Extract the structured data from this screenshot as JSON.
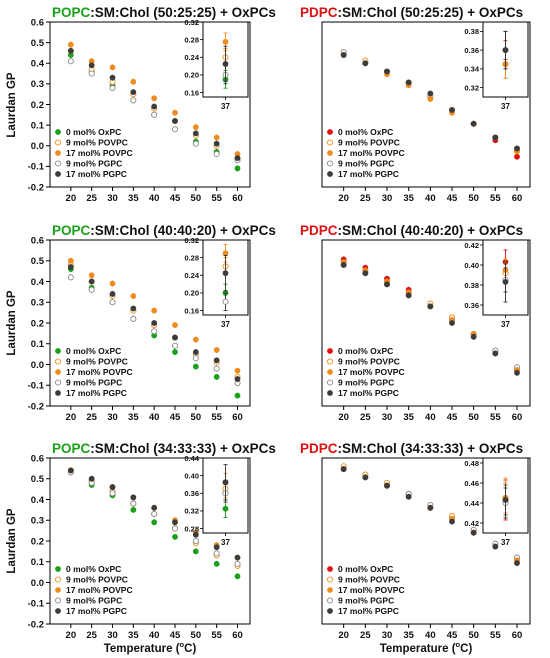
{
  "figure": {
    "ylabel": "Laurdan GP",
    "xlabel_main": "Temperature (",
    "xlabel_deg": "o",
    "xlabel_tail": "C)",
    "colors": {
      "green": "#1aa01a",
      "red": "#dd1111",
      "orange": "#f08c1e",
      "gray": "#3c3c3c",
      "dark": "#111111"
    }
  },
  "chart_data": [
    {
      "type": "scatter",
      "title_lipid": "POPC",
      "title_rest": ":SM:Chol (50:25:25) + OxPCs",
      "lipid_color": "#1aa01a",
      "x": [
        20,
        25,
        30,
        35,
        40,
        45,
        50,
        55,
        60
      ],
      "xlim": [
        15,
        63
      ],
      "ylim": [
        -0.2,
        0.6
      ],
      "xticks": [
        "20",
        "25",
        "30",
        "35",
        "40",
        "45",
        "50",
        "55",
        "60"
      ],
      "yticks": [
        "-0.2",
        "-0.1",
        "0.0",
        "0.1",
        "0.2",
        "0.3",
        "0.4",
        "0.5",
        "0.6"
      ],
      "legend_labels": [
        "0 mol% OxPC",
        "9 mol% POVPC",
        "17 mol% POVPC",
        "9 mol% PGPC",
        "17 mol% PGPC"
      ],
      "series": [
        {
          "name": "0 mol% OxPC",
          "style": "green",
          "values": [
            0.44,
            0.36,
            0.29,
            0.22,
            0.15,
            0.08,
            0.02,
            -0.03,
            -0.11
          ]
        },
        {
          "name": "9 mol% POVPC",
          "style": "orange-open",
          "values": [
            0.46,
            0.37,
            0.31,
            0.25,
            0.18,
            0.12,
            0.05,
            0.0,
            -0.06
          ]
        },
        {
          "name": "17 mol% POVPC",
          "style": "orange",
          "values": [
            0.49,
            0.41,
            0.38,
            0.31,
            0.23,
            0.16,
            0.09,
            0.04,
            -0.04
          ]
        },
        {
          "name": "9 mol% PGPC",
          "style": "gray-open",
          "values": [
            0.41,
            0.35,
            0.28,
            0.22,
            0.15,
            0.08,
            0.01,
            -0.04,
            -0.07
          ]
        },
        {
          "name": "17 mol% PGPC",
          "style": "dark",
          "values": [
            0.46,
            0.39,
            0.33,
            0.26,
            0.19,
            0.12,
            0.06,
            0.01,
            -0.06
          ]
        }
      ],
      "inset": {
        "xtick": "37",
        "ylim": [
          0.15,
          0.32
        ],
        "yticks": [
          "0.16",
          "0.20",
          "0.24",
          "0.28",
          "0.32"
        ],
        "points": [
          {
            "style": "green",
            "value": 0.19,
            "err": 0.02
          },
          {
            "style": "orange-open",
            "value": 0.24,
            "err": 0.02
          },
          {
            "style": "orange",
            "value": 0.275,
            "err": 0.02
          },
          {
            "style": "gray-open",
            "value": 0.2,
            "err": 0.02
          },
          {
            "style": "dark",
            "value": 0.225,
            "err": 0.04
          }
        ]
      }
    },
    {
      "type": "scatter",
      "title_lipid": "PDPC",
      "title_rest": ":SM:Chol (50:25:25) + OxPCs",
      "lipid_color": "#dd1111",
      "x": [
        20,
        25,
        30,
        35,
        40,
        45,
        50,
        55,
        60
      ],
      "xlim": [
        15,
        63
      ],
      "ylim": [
        0.0,
        0.6
      ],
      "xticks": [
        "20",
        "25",
        "30",
        "35",
        "40",
        "45",
        "50",
        "55",
        "60"
      ],
      "yticks": [],
      "legend_labels": [
        "0 mol% OxPC",
        "9 mol% POVPC",
        "17 mol% POVPC",
        "9 mol% PGPC",
        "17 mol% PGPC"
      ],
      "series": [
        {
          "name": "0 mol% OxPC",
          "style": "red",
          "values": [
            0.48,
            0.45,
            0.42,
            0.38,
            0.33,
            0.28,
            0.23,
            0.17,
            0.11
          ]
        },
        {
          "name": "9 mol% POVPC",
          "style": "orange-open",
          "values": [
            0.49,
            0.46,
            0.42,
            0.38,
            0.33,
            0.28,
            0.23,
            0.18,
            0.13
          ]
        },
        {
          "name": "17 mol% POVPC",
          "style": "orange",
          "values": [
            0.48,
            0.45,
            0.41,
            0.37,
            0.32,
            0.27,
            0.23,
            0.18,
            0.13
          ]
        },
        {
          "name": "9 mol% PGPC",
          "style": "gray-open",
          "values": [
            0.49,
            0.45,
            0.42,
            0.38,
            0.33,
            0.28,
            0.23,
            0.18,
            0.14
          ]
        },
        {
          "name": "17 mol% PGPC",
          "style": "dark",
          "values": [
            0.48,
            0.45,
            0.42,
            0.38,
            0.34,
            0.28,
            0.23,
            0.18,
            0.14
          ]
        }
      ],
      "inset": {
        "xtick": "37",
        "ylim": [
          0.31,
          0.39
        ],
        "yticks": [
          "0.32",
          "0.34",
          "0.36",
          "0.38"
        ],
        "points": [
          {
            "style": "red",
            "value": 0.36,
            "err": 0.01
          },
          {
            "style": "orange-open",
            "value": 0.345,
            "err": 0.015
          },
          {
            "style": "orange",
            "value": 0.345,
            "err": 0.015
          },
          {
            "style": "gray-open",
            "value": 0.36,
            "err": 0.02
          },
          {
            "style": "dark",
            "value": 0.36,
            "err": 0.02
          }
        ]
      }
    },
    {
      "type": "scatter",
      "title_lipid": "POPC",
      "title_rest": ":SM:Chol (40:40:20) + OxPCs",
      "lipid_color": "#1aa01a",
      "x": [
        20,
        25,
        30,
        35,
        40,
        45,
        50,
        55,
        60
      ],
      "xlim": [
        15,
        63
      ],
      "ylim": [
        -0.2,
        0.6
      ],
      "xticks": [
        "20",
        "25",
        "30",
        "35",
        "40",
        "45",
        "50",
        "55",
        "60"
      ],
      "yticks": [
        "-0.2",
        "-0.1",
        "0.0",
        "0.1",
        "0.2",
        "0.3",
        "0.4",
        "0.5",
        "0.6"
      ],
      "legend_labels": [
        "0 mol% OxPC",
        "9 mol% POVPC",
        "17 mol% POVPC",
        "9 mol% PGPC",
        "17 mol% PGPC"
      ],
      "series": [
        {
          "name": "0 mol% OxPC",
          "style": "green",
          "values": [
            0.46,
            0.37,
            0.3,
            0.22,
            0.14,
            0.06,
            -0.01,
            -0.06,
            -0.15
          ]
        },
        {
          "name": "9 mol% POVPC",
          "style": "orange-open",
          "values": [
            0.48,
            0.4,
            0.33,
            0.26,
            0.19,
            0.13,
            0.05,
            0.01,
            -0.06
          ]
        },
        {
          "name": "17 mol% POVPC",
          "style": "orange",
          "values": [
            0.5,
            0.43,
            0.39,
            0.33,
            0.26,
            0.19,
            0.12,
            0.07,
            -0.03
          ]
        },
        {
          "name": "9 mol% PGPC",
          "style": "gray-open",
          "values": [
            0.42,
            0.36,
            0.3,
            0.22,
            0.16,
            0.09,
            0.03,
            -0.02,
            -0.09
          ]
        },
        {
          "name": "17 mol% PGPC",
          "style": "dark",
          "values": [
            0.47,
            0.4,
            0.34,
            0.27,
            0.2,
            0.13,
            0.06,
            0.02,
            -0.07
          ]
        }
      ],
      "inset": {
        "xtick": "37",
        "ylim": [
          0.15,
          0.32
        ],
        "yticks": [
          "0.16",
          "0.20",
          "0.24",
          "0.28",
          "0.32"
        ],
        "points": [
          {
            "style": "green",
            "value": 0.2,
            "err": 0.02
          },
          {
            "style": "orange-open",
            "value": 0.26,
            "err": 0.02
          },
          {
            "style": "orange",
            "value": 0.29,
            "err": 0.02
          },
          {
            "style": "gray-open",
            "value": 0.18,
            "err": 0.02
          },
          {
            "style": "dark",
            "value": 0.245,
            "err": 0.04
          }
        ]
      }
    },
    {
      "type": "scatter",
      "title_lipid": "PDPC",
      "title_rest": ":SM:Chol (40:40:20) + OxPCs",
      "lipid_color": "#dd1111",
      "x": [
        20,
        25,
        30,
        35,
        40,
        45,
        50,
        55,
        60
      ],
      "xlim": [
        15,
        63
      ],
      "ylim": [
        0.0,
        0.6
      ],
      "xticks": [
        "20",
        "25",
        "30",
        "35",
        "40",
        "45",
        "50",
        "55",
        "60"
      ],
      "yticks": [],
      "legend_labels": [
        "0 mol% OxPC",
        "9 mol% POVPC",
        "17 mol% POVPC",
        "9 mol% PGPC",
        "17 mol% PGPC"
      ],
      "series": [
        {
          "name": "0 mol% OxPC",
          "style": "red",
          "values": [
            0.53,
            0.5,
            0.46,
            0.42,
            0.37,
            0.32,
            0.26,
            0.19,
            0.13
          ]
        },
        {
          "name": "9 mol% POVPC",
          "style": "orange-open",
          "values": [
            0.52,
            0.49,
            0.45,
            0.41,
            0.37,
            0.32,
            0.26,
            0.2,
            0.13
          ]
        },
        {
          "name": "17 mol% POVPC",
          "style": "orange",
          "values": [
            0.52,
            0.49,
            0.45,
            0.41,
            0.36,
            0.31,
            0.26,
            0.19,
            0.13
          ]
        },
        {
          "name": "9 mol% PGPC",
          "style": "gray-open",
          "values": [
            0.51,
            0.48,
            0.44,
            0.4,
            0.36,
            0.31,
            0.26,
            0.2,
            0.14
          ]
        },
        {
          "name": "17 mol% PGPC",
          "style": "dark",
          "values": [
            0.51,
            0.48,
            0.44,
            0.4,
            0.36,
            0.3,
            0.25,
            0.19,
            0.12
          ]
        }
      ],
      "inset": {
        "xtick": "37",
        "ylim": [
          0.35,
          0.425
        ],
        "yticks": [
          "0.36",
          "0.38",
          "0.40",
          "0.42"
        ],
        "points": [
          {
            "style": "red",
            "value": 0.403,
            "err": 0.012
          },
          {
            "style": "orange-open",
            "value": 0.392,
            "err": 0.01
          },
          {
            "style": "orange",
            "value": 0.395,
            "err": 0.012
          },
          {
            "style": "gray-open",
            "value": 0.385,
            "err": 0.012
          },
          {
            "style": "dark",
            "value": 0.383,
            "err": 0.02
          }
        ]
      }
    },
    {
      "type": "scatter",
      "title_lipid": "POPC",
      "title_rest": ":SM:Chol (34:33:33) + OxPCs",
      "lipid_color": "#1aa01a",
      "x": [
        20,
        25,
        30,
        35,
        40,
        45,
        50,
        55,
        60
      ],
      "xlim": [
        15,
        63
      ],
      "ylim": [
        -0.2,
        0.6
      ],
      "xticks": [
        "20",
        "25",
        "30",
        "35",
        "40",
        "45",
        "50",
        "55",
        "60"
      ],
      "yticks": [
        "-0.2",
        "-0.1",
        "0.0",
        "0.1",
        "0.2",
        "0.3",
        "0.4",
        "0.5",
        "0.6"
      ],
      "legend_labels": [
        "0 mol% OxPC",
        "9 mol% POVPC",
        "17 mol% POVPC",
        "9 mol% PGPC",
        "17 mol% PGPC"
      ],
      "series": [
        {
          "name": "0 mol% OxPC",
          "style": "green",
          "values": [
            0.53,
            0.47,
            0.42,
            0.35,
            0.29,
            0.22,
            0.15,
            0.09,
            0.03
          ]
        },
        {
          "name": "9 mol% POVPC",
          "style": "orange-open",
          "values": [
            0.54,
            0.49,
            0.44,
            0.38,
            0.33,
            0.26,
            0.19,
            0.13,
            0.08
          ]
        },
        {
          "name": "17 mol% POVPC",
          "style": "orange",
          "values": [
            0.54,
            0.5,
            0.46,
            0.41,
            0.36,
            0.3,
            0.24,
            0.18,
            0.12
          ]
        },
        {
          "name": "9 mol% PGPC",
          "style": "gray-open",
          "values": [
            0.53,
            0.48,
            0.43,
            0.38,
            0.33,
            0.26,
            0.2,
            0.14,
            0.09
          ]
        },
        {
          "name": "17 mol% PGPC",
          "style": "dark",
          "values": [
            0.54,
            0.5,
            0.46,
            0.41,
            0.36,
            0.29,
            0.23,
            0.17,
            0.12
          ]
        }
      ],
      "inset": {
        "xtick": "37",
        "ylim": [
          0.27,
          0.44
        ],
        "yticks": [
          "0.28",
          "0.32",
          "0.36",
          "0.40",
          "0.44"
        ],
        "points": [
          {
            "style": "green",
            "value": 0.325,
            "err": 0.02
          },
          {
            "style": "orange-open",
            "value": 0.37,
            "err": 0.02
          },
          {
            "style": "orange",
            "value": 0.385,
            "err": 0.02
          },
          {
            "style": "gray-open",
            "value": 0.36,
            "err": 0.02
          },
          {
            "style": "dark",
            "value": 0.385,
            "err": 0.04
          }
        ]
      }
    },
    {
      "type": "scatter",
      "title_lipid": "PDPC",
      "title_rest": ":SM:Chol (34:33:33) + OxPCs",
      "lipid_color": "#dd1111",
      "x": [
        20,
        25,
        30,
        35,
        40,
        45,
        50,
        55,
        60
      ],
      "xlim": [
        15,
        63
      ],
      "ylim": [
        0.0,
        0.6
      ],
      "xticks": [
        "20",
        "25",
        "30",
        "35",
        "40",
        "45",
        "50",
        "55",
        "60"
      ],
      "yticks": [],
      "legend_labels": [
        "0 mol% OxPC",
        "9 mol% POVPC",
        "17 mol% POVPC",
        "9 mol% PGPC",
        "17 mol% PGPC"
      ],
      "series": [
        {
          "name": "0 mol% OxPC",
          "style": "red",
          "values": [
            0.56,
            0.53,
            0.5,
            0.47,
            0.42,
            0.38,
            0.33,
            0.28,
            0.23
          ]
        },
        {
          "name": "9 mol% POVPC",
          "style": "orange-open",
          "values": [
            0.57,
            0.54,
            0.51,
            0.47,
            0.43,
            0.39,
            0.34,
            0.29,
            0.24
          ]
        },
        {
          "name": "17 mol% POVPC",
          "style": "orange",
          "values": [
            0.56,
            0.53,
            0.5,
            0.46,
            0.42,
            0.38,
            0.33,
            0.28,
            0.23
          ]
        },
        {
          "name": "9 mol% PGPC",
          "style": "gray-open",
          "values": [
            0.56,
            0.53,
            0.5,
            0.47,
            0.43,
            0.38,
            0.34,
            0.29,
            0.24
          ]
        },
        {
          "name": "17 mol% PGPC",
          "style": "dark",
          "values": [
            0.56,
            0.53,
            0.5,
            0.46,
            0.42,
            0.37,
            0.33,
            0.28,
            0.22
          ]
        }
      ],
      "inset": {
        "xtick": "37",
        "ylim": [
          0.41,
          0.485
        ],
        "yticks": [
          "0.42",
          "0.44",
          "0.46",
          "0.48"
        ],
        "points": [
          {
            "style": "red",
            "value": 0.443,
            "err": 0.02
          },
          {
            "style": "orange-open",
            "value": 0.445,
            "err": 0.015
          },
          {
            "style": "orange",
            "value": 0.445,
            "err": 0.02
          },
          {
            "style": "gray-open",
            "value": 0.44,
            "err": 0.015
          },
          {
            "style": "dark",
            "value": 0.443,
            "err": 0.015
          }
        ]
      }
    }
  ]
}
